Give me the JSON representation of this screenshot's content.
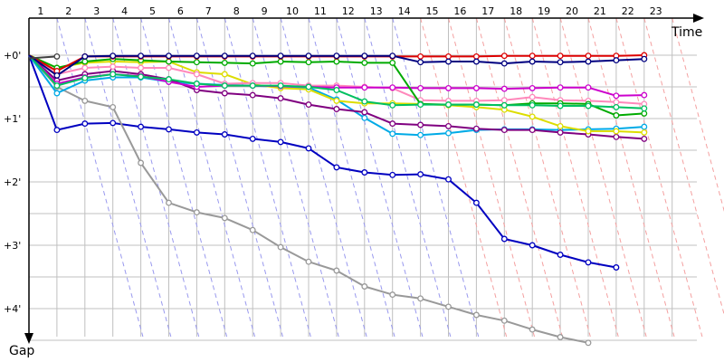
{
  "chart_data": {
    "type": "line",
    "xlabel": "Time",
    "ylabel": "Gap",
    "x_categories": [
      "1",
      "2",
      "3",
      "4",
      "5",
      "6",
      "7",
      "8",
      "9",
      "10",
      "11",
      "12",
      "13",
      "14",
      "15",
      "16",
      "17",
      "18",
      "19",
      "20",
      "21",
      "22",
      "23"
    ],
    "y_tick_labels": [
      "+0'",
      "+1'",
      "+2'",
      "+3'",
      "+4'"
    ],
    "y_range_minutes": [
      -0.3,
      4.5
    ],
    "grid": true,
    "series": [
      {
        "color": "#0000c0",
        "marker_fill": "#ffffff",
        "y": [
          0,
          1.18,
          1.08,
          1.07,
          1.13,
          1.17,
          1.22,
          1.25,
          1.32,
          1.37,
          1.47,
          1.77,
          1.85,
          1.89,
          1.88,
          1.96,
          2.33,
          2.9,
          3.0,
          3.15,
          3.27,
          3.35
        ]
      },
      {
        "color": "#999999",
        "marker_fill": "#ffffff",
        "y": [
          0,
          0.5,
          0.72,
          0.82,
          1.7,
          2.33,
          2.48,
          2.57,
          2.76,
          3.03,
          3.26,
          3.4,
          3.65,
          3.78,
          3.84,
          3.97,
          4.1,
          4.19,
          4.33,
          4.45,
          4.54
        ]
      },
      {
        "color": "#00aae6",
        "marker_fill": "#ffffff",
        "y": [
          0,
          0.6,
          0.4,
          0.35,
          0.35,
          0.42,
          0.45,
          0.47,
          0.48,
          0.5,
          0.51,
          0.7,
          0.99,
          1.24,
          1.26,
          1.23,
          1.18,
          1.17,
          1.17,
          1.18,
          1.17,
          1.16,
          1.13
        ]
      },
      {
        "color": "#800080",
        "marker_fill": "#ffffff",
        "y": [
          0,
          0.4,
          0.3,
          0.25,
          0.3,
          0.38,
          0.55,
          0.6,
          0.63,
          0.68,
          0.78,
          0.85,
          0.9,
          1.08,
          1.1,
          1.12,
          1.16,
          1.18,
          1.18,
          1.22,
          1.25,
          1.29,
          1.32
        ]
      },
      {
        "color": "#dddd00",
        "marker_fill": "#ffffff",
        "y": [
          0,
          0.2,
          0.12,
          0.1,
          0.11,
          0.1,
          0.27,
          0.3,
          0.46,
          0.52,
          0.54,
          0.72,
          0.76,
          0.76,
          0.77,
          0.79,
          0.82,
          0.86,
          0.97,
          1.12,
          1.2,
          1.2,
          1.22
        ]
      },
      {
        "color": "#ff88bb",
        "marker_fill": "#ffffff",
        "y": [
          0,
          0.3,
          0.2,
          0.18,
          0.2,
          0.2,
          0.3,
          0.45,
          0.44,
          0.44,
          0.48,
          0.48,
          0.5,
          0.52,
          0.71,
          0.72,
          0.72,
          0.71,
          0.66,
          0.71,
          0.72,
          0.74,
          0.77
        ]
      },
      {
        "color": "#cc00cc",
        "marker_fill": "#ffffff",
        "y": [
          0,
          0.45,
          0.35,
          0.3,
          0.33,
          0.42,
          0.5,
          0.48,
          0.48,
          0.49,
          0.5,
          0.51,
          0.51,
          0.51,
          0.52,
          0.52,
          0.52,
          0.53,
          0.52,
          0.51,
          0.51,
          0.64,
          0.63
        ]
      },
      {
        "color": "#00aa00",
        "marker_fill": "#ffffff",
        "y": [
          0,
          0.2,
          0.1,
          0.06,
          0.08,
          0.1,
          0.11,
          0.12,
          0.13,
          0.1,
          0.11,
          0.1,
          0.12,
          0.12,
          0.77,
          0.78,
          0.78,
          0.79,
          0.76,
          0.76,
          0.77,
          0.95,
          0.92
        ]
      },
      {
        "color": "#00c060",
        "marker_fill": "#ffffff",
        "y": [
          0,
          0.48,
          0.36,
          0.3,
          0.34,
          0.38,
          0.45,
          0.48,
          0.48,
          0.48,
          0.5,
          0.55,
          0.73,
          0.79,
          0.78,
          0.78,
          0.78,
          0.79,
          0.79,
          0.8,
          0.8,
          0.82,
          0.84
        ]
      },
      {
        "color": "#dd0000",
        "marker_fill": "#ffffff",
        "y": [
          0,
          0.25,
          0.02,
          0.02,
          0.02,
          0.02,
          0.02,
          0.02,
          0.02,
          0.02,
          0.02,
          0.02,
          0.02,
          0.02,
          0.02,
          0.02,
          0.02,
          0.01,
          0.01,
          0.01,
          0.01,
          0.01,
          0.0
        ]
      },
      {
        "color": "#000080",
        "marker_fill": "#ffffff",
        "y": [
          0,
          0.32,
          0.02,
          0.01,
          0.01,
          0.01,
          0.01,
          0.01,
          0.01,
          0.01,
          0.01,
          0.01,
          0.01,
          0.01,
          0.11,
          0.1,
          0.1,
          0.13,
          0.1,
          0.11,
          0.1,
          0.08,
          0.06
        ]
      },
      {
        "color": "#404040",
        "marker_fill": "#ffffff",
        "y": [
          0.05,
          0.02
        ]
      }
    ]
  }
}
